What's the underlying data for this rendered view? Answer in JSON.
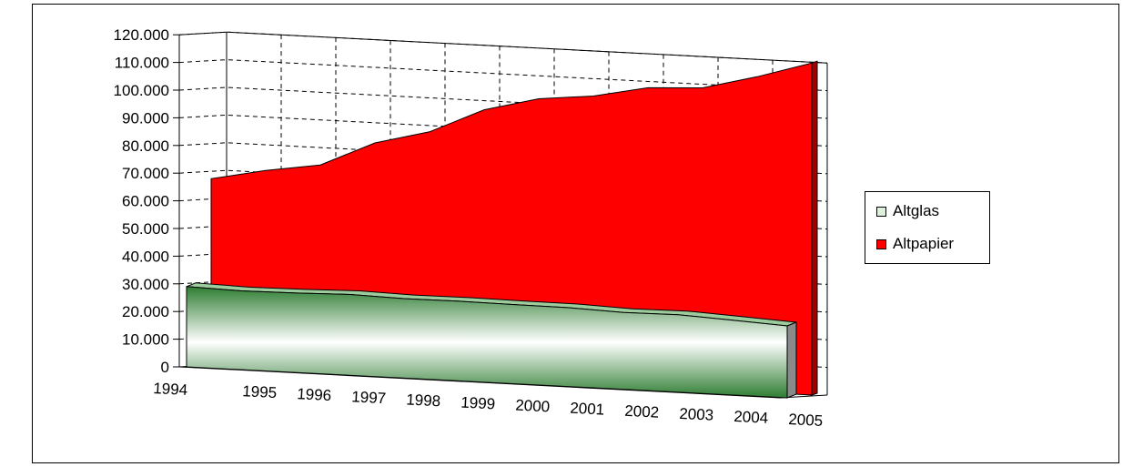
{
  "chart_data": {
    "type": "area",
    "categories": [
      "1994",
      "1995",
      "1996",
      "1997",
      "1998",
      "1999",
      "2000",
      "2001",
      "2002",
      "2003",
      "2004",
      "2005"
    ],
    "series": [
      {
        "name": "Altglas",
        "values": [
          29000,
          28500,
          28700,
          29200,
          28700,
          28800,
          28600,
          28500,
          27800,
          28000,
          27000,
          26000
        ]
      },
      {
        "name": "Altpapier",
        "values": [
          67000,
          71000,
          74000,
          83000,
          88000,
          97000,
          102000,
          104000,
          108000,
          109000,
          114000,
          120000
        ]
      }
    ],
    "yticks": [
      "0",
      "10.000",
      "20.000",
      "30.000",
      "40.000",
      "50.000",
      "60.000",
      "70.000",
      "80.000",
      "90.000",
      "100.000",
      "110.000",
      "120.000"
    ],
    "ylim": [
      0,
      120000
    ],
    "grid": true,
    "legend_position": "right",
    "colors": {
      "Altglas_dark": "#2e7d32",
      "Altglas_light": "#ffffff",
      "Altpapier": "#ff0000"
    }
  },
  "legend": {
    "items": [
      {
        "label": "Altglas",
        "color": "#dff0df"
      },
      {
        "label": "Altpapier",
        "color": "#ff0000"
      }
    ]
  }
}
